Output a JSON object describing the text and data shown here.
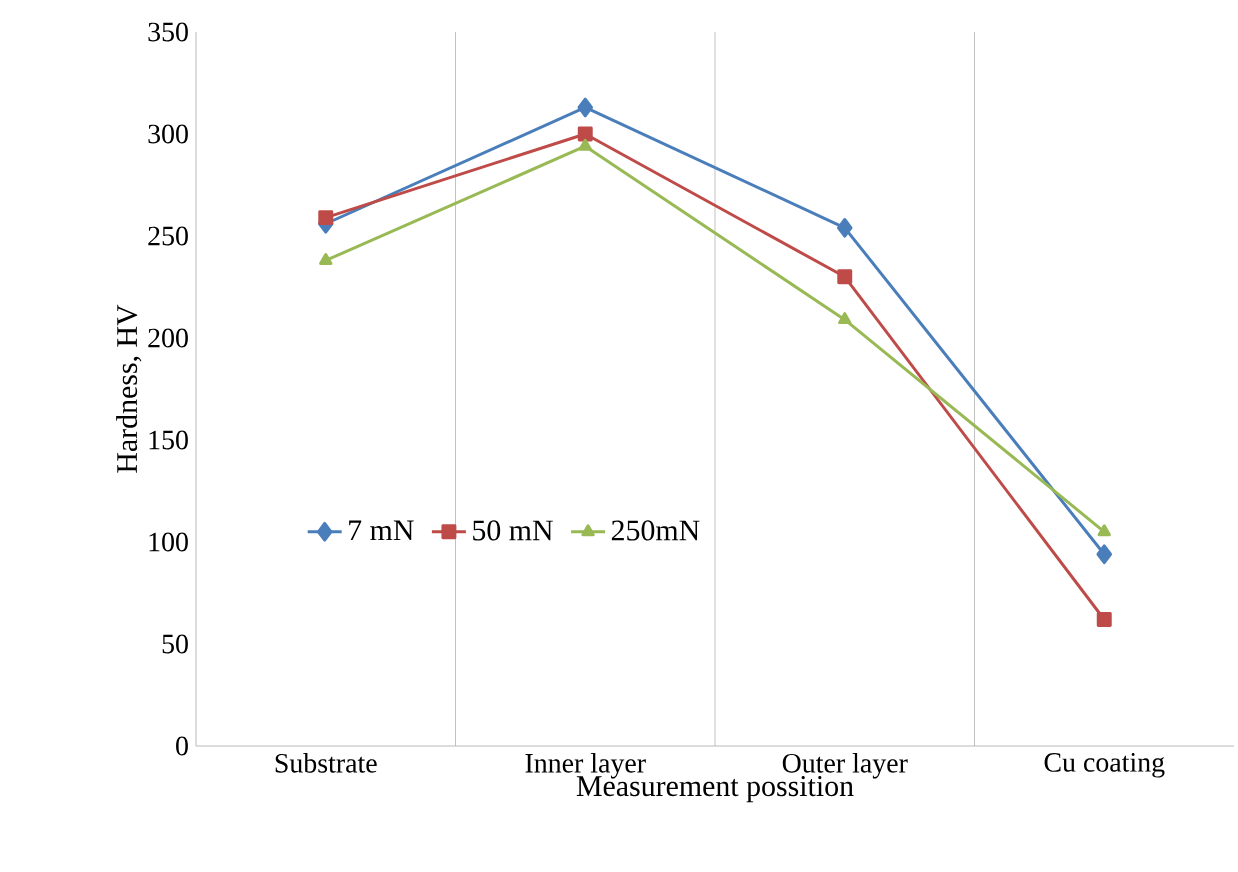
{
  "chart_data": {
    "type": "line",
    "xlabel": "Measurement possition",
    "ylabel": "Hardness, HV",
    "categories": [
      "Substrate",
      "Inner layer",
      "Outer layer",
      "Cu  coating"
    ],
    "series": [
      {
        "name": "7 mN",
        "color": "#4a7ebb",
        "marker": "diamond",
        "values": [
          256,
          313,
          254,
          94
        ]
      },
      {
        "name": "50 mN",
        "color": "#be4b48",
        "marker": "square",
        "values": [
          259,
          300,
          230,
          62
        ]
      },
      {
        "name": "250mN",
        "color": "#98b954",
        "marker": "triangle",
        "values": [
          238,
          294,
          209,
          105
        ]
      }
    ],
    "ylim": [
      0,
      350
    ],
    "yticks": [
      0,
      50,
      100,
      150,
      200,
      250,
      300,
      350
    ],
    "grid": "x",
    "legend": "left",
    "line_style": "solid"
  }
}
